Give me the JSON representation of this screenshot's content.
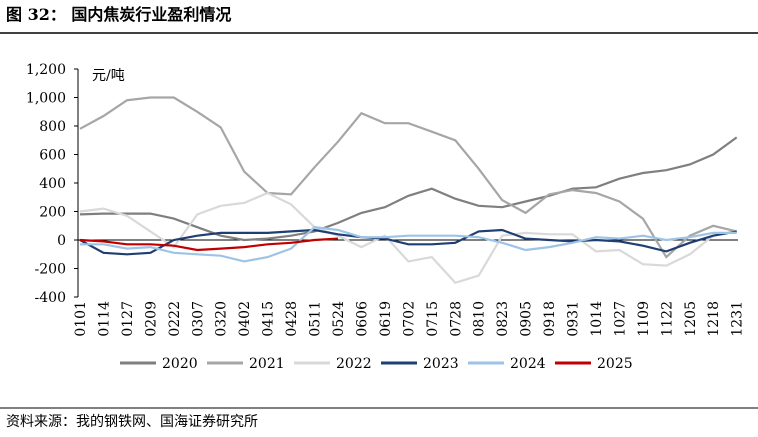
{
  "chart_data": {
    "type": "line",
    "title": "图 32：   国内焦炭行业盈利情况",
    "unit_label": "元/吨",
    "source": "资料来源：我的钢铁网、国海证券研究所",
    "categories": [
      "0101",
      "0114",
      "0127",
      "0209",
      "0222",
      "0307",
      "0320",
      "0402",
      "0415",
      "0428",
      "0511",
      "0524",
      "0606",
      "0619",
      "0702",
      "0715",
      "0728",
      "0810",
      "0823",
      "0905",
      "0918",
      "0931",
      "1014",
      "1027",
      "1109",
      "1122",
      "1205",
      "1218",
      "1231"
    ],
    "ylim": [
      -400,
      1200
    ],
    "yticks": [
      -400,
      -200,
      0,
      200,
      400,
      600,
      800,
      {
        "value": 1000,
        "label": "1,000"
      },
      {
        "value": 1200,
        "label": "1,200"
      }
    ],
    "series": [
      {
        "name": "2020",
        "color": "#7f7f7f",
        "values": [
          180,
          185,
          185,
          185,
          150,
          90,
          30,
          0,
          10,
          30,
          60,
          120,
          190,
          230,
          310,
          360,
          290,
          240,
          230,
          270,
          310,
          360,
          370,
          430,
          470,
          490,
          530,
          600,
          720
        ]
      },
      {
        "name": "2021",
        "color": "#a6a6a6",
        "values": [
          780,
          870,
          980,
          1000,
          1000,
          900,
          790,
          480,
          330,
          320,
          510,
          690,
          890,
          820,
          820,
          760,
          700,
          500,
          280,
          190,
          320,
          350,
          330,
          270,
          150,
          -120,
          30,
          100,
          60
        ]
      },
      {
        "name": "2022",
        "color": "#d9d9d9",
        "values": [
          200,
          220,
          170,
          60,
          -50,
          180,
          240,
          260,
          330,
          250,
          90,
          30,
          -50,
          30,
          -150,
          -120,
          -300,
          -250,
          30,
          50,
          40,
          40,
          -80,
          -70,
          -170,
          -180,
          -100,
          30,
          60
        ]
      },
      {
        "name": "2023",
        "color": "#1f3f73",
        "values": [
          0,
          -90,
          -100,
          -90,
          0,
          30,
          50,
          50,
          50,
          60,
          70,
          40,
          20,
          10,
          -30,
          -30,
          -20,
          60,
          70,
          10,
          0,
          -10,
          0,
          -10,
          -40,
          -80,
          -20,
          30,
          60
        ]
      },
      {
        "name": "2024",
        "color": "#9dc3e6",
        "values": [
          -30,
          -30,
          -60,
          -50,
          -90,
          -100,
          -110,
          -150,
          -120,
          -60,
          90,
          70,
          20,
          20,
          30,
          30,
          30,
          20,
          -20,
          -70,
          -50,
          -20,
          20,
          10,
          30,
          0,
          20,
          50,
          50
        ]
      },
      {
        "name": "2025",
        "color": "#c00000",
        "values": [
          0,
          -10,
          -30,
          -30,
          -40,
          -70,
          -60,
          -50,
          -30,
          -20,
          0,
          10,
          null,
          null,
          null,
          null,
          null,
          null,
          null,
          null,
          null,
          null,
          null,
          null,
          null,
          null,
          null,
          null,
          null
        ]
      }
    ]
  }
}
